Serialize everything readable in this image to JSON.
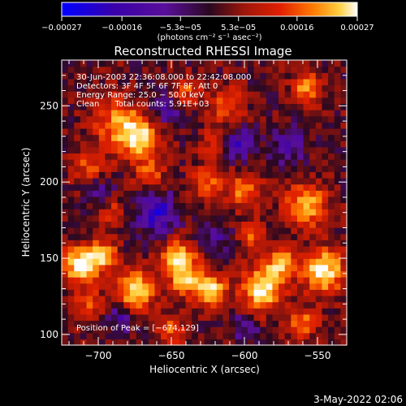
{
  "chart_data": {
    "type": "heatmap",
    "title": "Reconstructed RHESSI Image",
    "xlabel": "Heliocentric X (arcsec)",
    "ylabel": "Heliocentric Y (arcsec)",
    "xlim": [
      -725,
      -530
    ],
    "ylim": [
      93,
      280
    ],
    "xticks": [
      -700,
      -650,
      -600,
      -550
    ],
    "xtick_labels": [
      "−700",
      "−650",
      "−600",
      "−550"
    ],
    "yticks": [
      100,
      150,
      200,
      250
    ],
    "ytick_labels": [
      "100",
      "150",
      "200",
      "250"
    ],
    "colorbar": {
      "min": -0.00027,
      "max": 0.00027,
      "ticks": [
        -0.00027,
        -0.00016,
        -5.3e-05,
        5.3e-05,
        0.00016,
        0.00027
      ],
      "tick_labels": [
        "−0.00027",
        "−0.00016",
        "−5.3e−05",
        "5.3e−05",
        "0.00016",
        "0.00027"
      ],
      "units_label": "(photons cm⁻² s⁻¹ asec⁻²)",
      "colors": [
        "#0000ff",
        "#3a00aa",
        "#5a0f9a",
        "#2a0820",
        "#a0160a",
        "#e02000",
        "#ff7a00",
        "#ffd040",
        "#ffffff"
      ]
    },
    "annotations": [
      "30-Jun-2003 22:36:08.000 to 22:42:08.000",
      "Detectors: 3F 4F 5F 6F 7F 8F, Att 0",
      "Energy Range: 25.0 − 50.0 keV",
      "Clean      Total counts: 5.91E+03",
      "Position of Peak = [−674,129]"
    ],
    "peak": {
      "x": -674,
      "y": 129
    },
    "blobs": [
      {
        "x": -688,
        "y": 240,
        "v": 0.55,
        "s": 16
      },
      {
        "x": -672,
        "y": 230,
        "v": 0.9,
        "s": 14
      },
      {
        "x": -706,
        "y": 210,
        "v": 0.45,
        "s": 12
      },
      {
        "x": -665,
        "y": 205,
        "v": 0.5,
        "s": 10
      },
      {
        "x": -712,
        "y": 146,
        "v": 1.0,
        "s": 12
      },
      {
        "x": -696,
        "y": 152,
        "v": 0.7,
        "s": 10
      },
      {
        "x": -674,
        "y": 129,
        "v": 1.0,
        "s": 12
      },
      {
        "x": -645,
        "y": 150,
        "v": 0.85,
        "s": 12
      },
      {
        "x": -640,
        "y": 135,
        "v": 0.7,
        "s": 10
      },
      {
        "x": -623,
        "y": 130,
        "v": 0.9,
        "s": 10
      },
      {
        "x": -588,
        "y": 130,
        "v": 1.0,
        "s": 14
      },
      {
        "x": -575,
        "y": 147,
        "v": 0.75,
        "s": 10
      },
      {
        "x": -546,
        "y": 142,
        "v": 1.0,
        "s": 14
      },
      {
        "x": -558,
        "y": 185,
        "v": 0.8,
        "s": 14
      },
      {
        "x": -600,
        "y": 195,
        "v": 0.6,
        "s": 12
      },
      {
        "x": -626,
        "y": 200,
        "v": 0.55,
        "s": 10
      },
      {
        "x": -557,
        "y": 262,
        "v": 0.7,
        "s": 10
      },
      {
        "x": -612,
        "y": 250,
        "v": 0.5,
        "s": 12
      },
      {
        "x": -640,
        "y": 260,
        "v": 0.45,
        "s": 10
      },
      {
        "x": -706,
        "y": 120,
        "v": 0.45,
        "s": 10
      },
      {
        "x": -560,
        "y": 108,
        "v": 0.55,
        "s": 10
      },
      {
        "x": -650,
        "y": 103,
        "v": 0.5,
        "s": 10
      },
      {
        "x": -620,
        "y": 225,
        "v": 0.4,
        "s": 10
      },
      {
        "x": -595,
        "y": 165,
        "v": 0.45,
        "s": 9
      },
      {
        "x": -690,
        "y": 180,
        "v": 0.4,
        "s": 9
      }
    ],
    "dips": [
      {
        "x": -660,
        "y": 180,
        "v": 0.6,
        "s": 14
      },
      {
        "x": -605,
        "y": 225,
        "v": 0.5,
        "s": 12
      },
      {
        "x": -655,
        "y": 248,
        "v": 0.4,
        "s": 12
      },
      {
        "x": -700,
        "y": 195,
        "v": 0.35,
        "s": 10
      },
      {
        "x": -570,
        "y": 225,
        "v": 0.4,
        "s": 12
      },
      {
        "x": -620,
        "y": 165,
        "v": 0.35,
        "s": 10
      },
      {
        "x": -685,
        "y": 110,
        "v": 0.35,
        "s": 10
      },
      {
        "x": -600,
        "y": 105,
        "v": 0.3,
        "s": 10
      }
    ]
  },
  "footer": {
    "timestamp": "3-May-2022 02:06"
  }
}
